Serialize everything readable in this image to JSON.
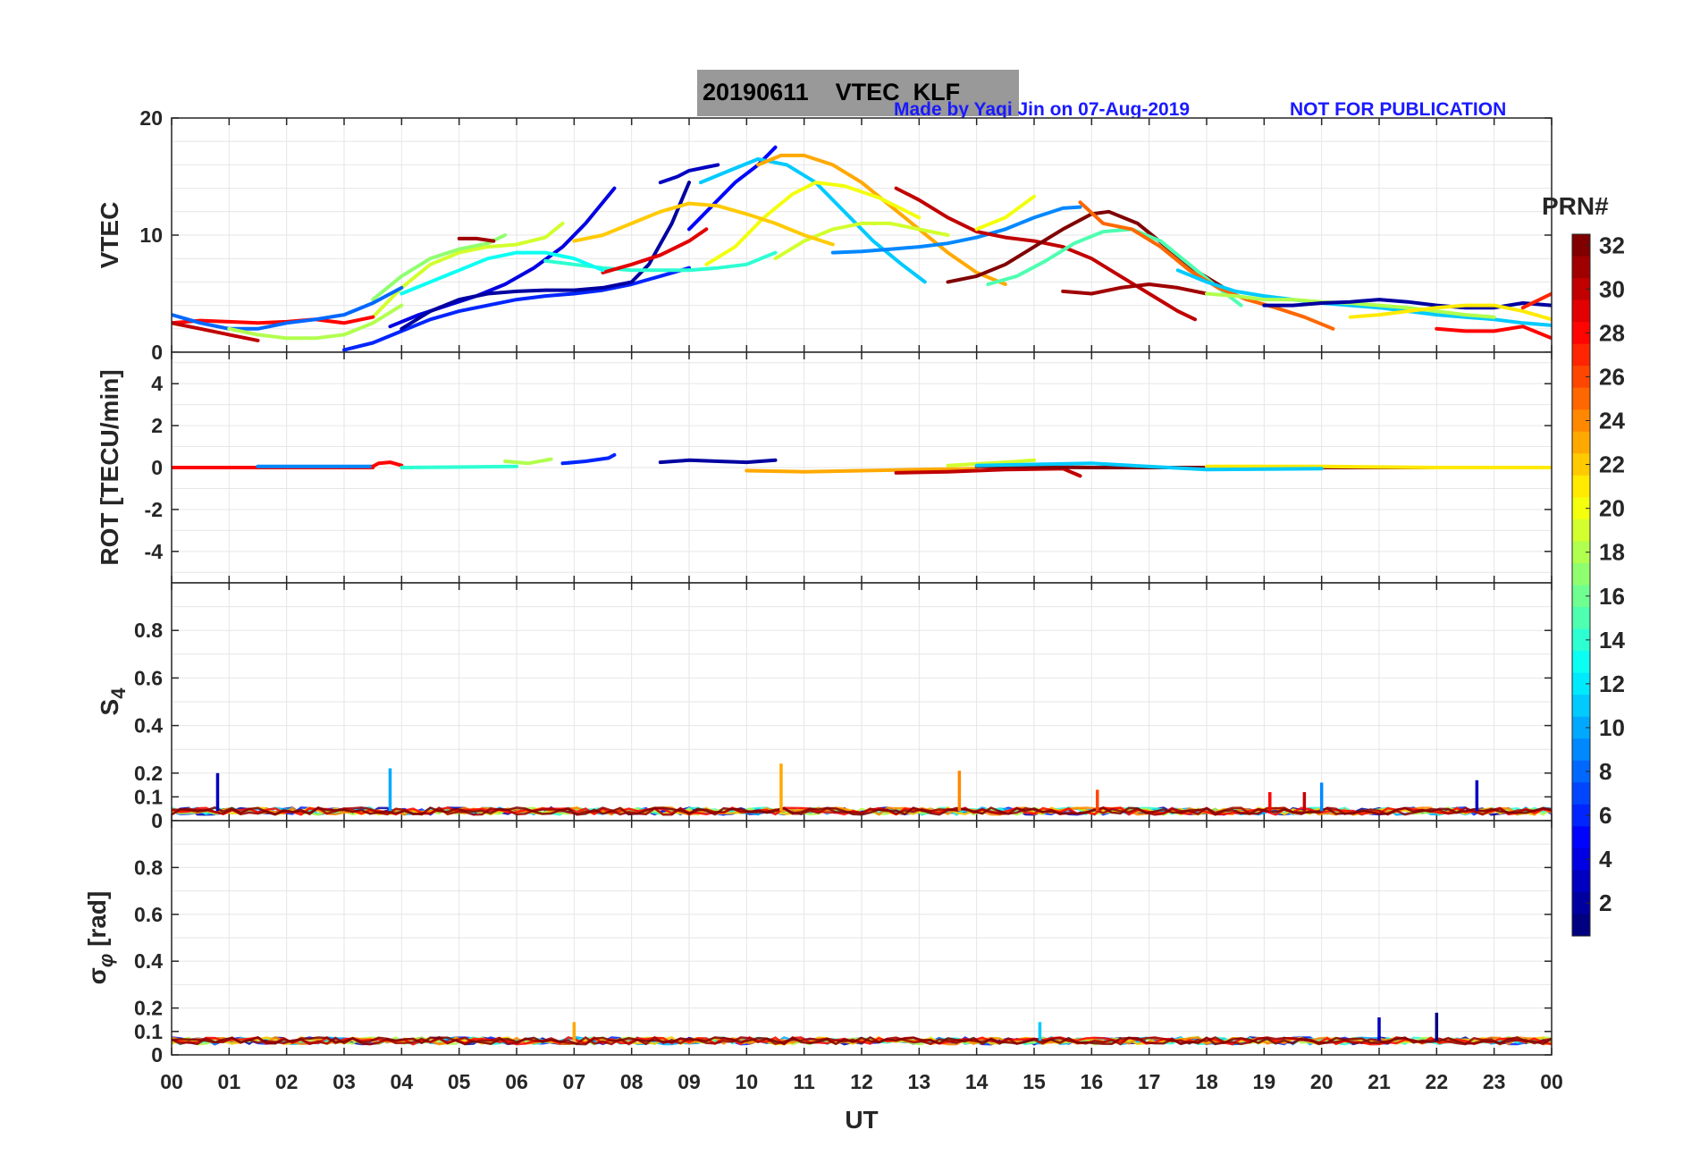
{
  "header": {
    "title": "20190611    VTEC  KLF",
    "credit": "Made by Yaqi Jin on 07-Aug-2019",
    "notice": "NOT FOR PUBLICATION"
  },
  "colorbar": {
    "label": "PRN#",
    "ticks": [
      "2",
      "4",
      "6",
      "8",
      "10",
      "12",
      "14",
      "16",
      "18",
      "20",
      "22",
      "24",
      "26",
      "28",
      "30",
      "32"
    ],
    "range": [
      1,
      32
    ]
  },
  "colors": {
    "grid": "#e6e6e6",
    "axis": "#262626",
    "credit": "#1a1aff",
    "title_bg": "#999999"
  },
  "chart_data": [
    {
      "type": "line",
      "id": "vtec",
      "ylabel": "VTEC",
      "ylim": [
        0,
        20
      ],
      "yticks": [
        "0",
        "10",
        "20"
      ],
      "xlim": [
        0,
        24
      ],
      "series": [
        {
          "prn": 6,
          "x": [
            3.0,
            3.5,
            4.0,
            4.5,
            5.0,
            5.5,
            6.0,
            6.5,
            7.0,
            7.5,
            8.0,
            8.5,
            9.0
          ],
          "y": [
            0.2,
            0.8,
            1.8,
            2.8,
            3.5,
            4.0,
            4.5,
            4.8,
            5.0,
            5.3,
            5.8,
            6.5,
            7.2
          ]
        },
        {
          "prn": 4,
          "x": [
            3.8,
            4.3,
            4.8,
            5.3,
            5.8,
            6.3,
            6.8,
            7.2,
            7.7
          ],
          "y": [
            2.2,
            3.2,
            4.0,
            4.8,
            5.8,
            7.2,
            9.0,
            11.0,
            14.0
          ]
        },
        {
          "prn": 2,
          "x": [
            4.0,
            4.5,
            5.0,
            5.5,
            6.0,
            6.5,
            7.0,
            7.5,
            8.0,
            8.3,
            8.7,
            9.0
          ],
          "y": [
            2.0,
            3.5,
            4.5,
            5.0,
            5.2,
            5.3,
            5.3,
            5.5,
            6.0,
            7.5,
            11.0,
            14.5
          ]
        },
        {
          "prn": 3,
          "x": [
            8.5,
            8.8,
            9.0,
            9.3,
            9.5
          ],
          "y": [
            14.5,
            15.0,
            15.5,
            15.8,
            16.0
          ]
        },
        {
          "prn": 5,
          "x": [
            9.0,
            9.4,
            9.8,
            10.2,
            10.5
          ],
          "y": [
            10.5,
            12.5,
            14.5,
            16.0,
            17.5
          ]
        },
        {
          "prn": 11,
          "x": [
            9.2,
            9.7,
            10.2,
            10.7,
            11.2,
            11.7,
            12.2,
            12.7,
            13.1
          ],
          "y": [
            14.5,
            15.5,
            16.5,
            16.0,
            14.5,
            12.0,
            9.5,
            7.5,
            6.0
          ]
        },
        {
          "prn": 23,
          "x": [
            10.2,
            10.6,
            11.0,
            11.5,
            12.0,
            12.5,
            13.0,
            13.5,
            14.0,
            14.5
          ],
          "y": [
            16.0,
            16.8,
            16.8,
            16.0,
            14.5,
            12.5,
            10.5,
            8.5,
            6.8,
            5.8
          ]
        },
        {
          "prn": 20,
          "x": [
            9.3,
            9.8,
            10.3,
            10.8,
            11.2,
            11.7,
            12.3,
            13.0
          ],
          "y": [
            7.5,
            9.0,
            11.5,
            13.5,
            14.5,
            14.2,
            13.2,
            11.5
          ]
        },
        {
          "prn": 19,
          "x": [
            10.5,
            11.0,
            11.5,
            12.0,
            12.5,
            13.0,
            13.5
          ],
          "y": [
            8.0,
            9.5,
            10.5,
            11.0,
            11.0,
            10.5,
            10.0
          ]
        },
        {
          "prn": 14,
          "x": [
            6.5,
            7.0,
            7.5,
            8.0,
            8.5,
            9.0,
            9.5,
            10.0,
            10.5
          ],
          "y": [
            7.8,
            7.5,
            7.2,
            7.0,
            7.0,
            7.0,
            7.2,
            7.5,
            8.5
          ]
        },
        {
          "prn": 22,
          "x": [
            7.0,
            7.5,
            8.0,
            8.5,
            9.0,
            9.5,
            10.0,
            10.5,
            11.0,
            11.5
          ],
          "y": [
            9.5,
            10.0,
            11.0,
            12.0,
            12.7,
            12.5,
            11.8,
            11.0,
            10.0,
            9.2
          ]
        },
        {
          "prn": 29,
          "x": [
            7.5,
            8.0,
            8.5,
            9.0,
            9.3
          ],
          "y": [
            6.8,
            7.5,
            8.3,
            9.5,
            10.5
          ]
        },
        {
          "prn": 17,
          "x": [
            3.5,
            4.0,
            4.5,
            5.0,
            5.5,
            5.8
          ],
          "y": [
            4.5,
            6.5,
            8.0,
            8.8,
            9.3,
            10.0
          ]
        },
        {
          "prn": 19,
          "x": [
            3.5,
            4.0,
            4.5,
            5.0,
            5.5,
            6.0,
            6.5,
            6.8
          ],
          "y": [
            3.0,
            5.5,
            7.5,
            8.5,
            9.0,
            9.2,
            9.8,
            11.0
          ]
        },
        {
          "prn": 13,
          "x": [
            4.0,
            4.5,
            5.0,
            5.5,
            6.0,
            6.5,
            7.0,
            7.5
          ],
          "y": [
            5.0,
            6.0,
            7.0,
            8.0,
            8.5,
            8.5,
            8.0,
            7.0
          ]
        },
        {
          "prn": 28,
          "x": [
            0.0,
            0.5,
            1.0,
            1.5,
            2.0,
            2.5,
            3.0,
            3.5
          ],
          "y": [
            2.5,
            2.7,
            2.6,
            2.5,
            2.6,
            2.8,
            2.5,
            3.0
          ]
        },
        {
          "prn": 8,
          "x": [
            0.0,
            0.5,
            1.0,
            1.5,
            2.0,
            2.5,
            3.0,
            3.5,
            4.0
          ],
          "y": [
            3.2,
            2.5,
            2.0,
            2.0,
            2.5,
            2.8,
            3.2,
            4.2,
            5.5
          ]
        },
        {
          "prn": 30,
          "x": [
            0.0,
            0.5,
            1.0,
            1.5
          ],
          "y": [
            2.5,
            2.0,
            1.5,
            1.0
          ]
        },
        {
          "prn": 18,
          "x": [
            1.0,
            1.5,
            2.0,
            2.5,
            3.0,
            3.5,
            4.0
          ],
          "y": [
            2.0,
            1.5,
            1.2,
            1.2,
            1.5,
            2.5,
            4.0
          ]
        },
        {
          "prn": 31,
          "x": [
            5.0,
            5.3,
            5.6
          ],
          "y": [
            9.7,
            9.7,
            9.5
          ]
        },
        {
          "prn": 9,
          "x": [
            11.5,
            12.0,
            12.5,
            13.0,
            13.5,
            14.0,
            14.5,
            15.0,
            15.5,
            15.8
          ],
          "y": [
            8.5,
            8.6,
            8.8,
            9.0,
            9.3,
            9.8,
            10.5,
            11.5,
            12.3,
            12.4
          ]
        },
        {
          "prn": 30,
          "x": [
            12.6,
            13.0,
            13.5,
            14.0,
            14.5,
            15.0,
            15.5,
            16.0,
            16.5,
            17.0,
            17.5,
            17.8
          ],
          "y": [
            14.0,
            13.0,
            11.5,
            10.3,
            9.8,
            9.5,
            9.0,
            8.0,
            6.5,
            5.0,
            3.5,
            2.8
          ]
        },
        {
          "prn": 32,
          "x": [
            13.5,
            14.0,
            14.5,
            15.0,
            15.5,
            16.0,
            16.3,
            16.8,
            17.3,
            17.8,
            18.3
          ],
          "y": [
            6.0,
            6.5,
            7.5,
            9.0,
            10.5,
            11.8,
            12.0,
            11.0,
            9.0,
            7.0,
            5.5
          ]
        },
        {
          "prn": 20,
          "x": [
            14.0,
            14.5,
            15.0
          ],
          "y": [
            10.5,
            11.5,
            13.3
          ]
        },
        {
          "prn": 15,
          "x": [
            14.2,
            14.7,
            15.2,
            15.7,
            16.2,
            16.7,
            17.2,
            17.7,
            18.2,
            18.6
          ],
          "y": [
            5.8,
            6.5,
            7.8,
            9.3,
            10.3,
            10.5,
            9.5,
            7.5,
            5.5,
            4.0
          ]
        },
        {
          "prn": 25,
          "x": [
            15.8,
            16.2,
            16.7,
            17.2,
            17.7,
            18.2,
            18.7,
            19.2,
            19.7,
            20.2
          ],
          "y": [
            12.8,
            11.0,
            10.5,
            9.0,
            7.0,
            5.5,
            4.5,
            3.8,
            3.0,
            2.0
          ]
        },
        {
          "prn": 31,
          "x": [
            15.5,
            16.0,
            16.5,
            17.0,
            17.5,
            18.0
          ],
          "y": [
            5.2,
            5.0,
            5.5,
            5.8,
            5.5,
            5.0
          ]
        },
        {
          "prn": 11,
          "x": [
            17.5,
            18.0,
            18.5,
            19.0,
            19.5,
            20.0,
            20.5,
            21.0,
            21.5,
            22.0,
            22.5,
            23.0,
            23.5,
            24.0
          ],
          "y": [
            7.0,
            6.0,
            5.2,
            4.8,
            4.5,
            4.2,
            4.0,
            3.8,
            3.5,
            3.2,
            3.0,
            2.8,
            2.5,
            2.3
          ]
        },
        {
          "prn": 18,
          "x": [
            18.0,
            18.5,
            19.0,
            19.5,
            20.0,
            20.5,
            21.0,
            21.5,
            22.0,
            22.5,
            23.0
          ],
          "y": [
            5.0,
            4.8,
            4.5,
            4.5,
            4.3,
            4.2,
            4.0,
            3.8,
            3.5,
            3.2,
            3.0
          ]
        },
        {
          "prn": 2,
          "x": [
            19.0,
            19.5,
            20.0,
            20.5,
            21.0,
            21.5,
            22.0,
            22.5,
            23.0,
            23.5,
            24.0
          ],
          "y": [
            4.0,
            4.0,
            4.2,
            4.3,
            4.5,
            4.3,
            4.0,
            3.8,
            3.8,
            4.2,
            4.0
          ]
        },
        {
          "prn": 21,
          "x": [
            20.5,
            21.0,
            21.5,
            22.0,
            22.5,
            23.0,
            23.5,
            24.0
          ],
          "y": [
            3.0,
            3.2,
            3.5,
            3.8,
            4.0,
            4.0,
            3.5,
            2.8
          ]
        },
        {
          "prn": 28,
          "x": [
            22.0,
            22.5,
            23.0,
            23.5,
            24.0
          ],
          "y": [
            2.0,
            1.8,
            1.8,
            2.2,
            1.2
          ]
        },
        {
          "prn": 27,
          "x": [
            23.5,
            24.0
          ],
          "y": [
            3.8,
            5.0
          ]
        }
      ]
    },
    {
      "type": "line",
      "id": "rot",
      "ylabel": "ROT [TECU/min]",
      "ylim": [
        -5.5,
        5.5
      ],
      "yticks": [
        "-4",
        "-2",
        "0",
        "2",
        "4"
      ],
      "xlim": [
        0,
        24
      ],
      "series": [
        {
          "prn": 28,
          "x": [
            0,
            3.5
          ],
          "y": [
            0,
            0
          ]
        },
        {
          "prn": 9,
          "x": [
            1.5,
            3.5
          ],
          "y": [
            0.05,
            0.05
          ]
        },
        {
          "prn": 28,
          "x": [
            3.5,
            3.6,
            3.8,
            4.0
          ],
          "y": [
            0.05,
            0.2,
            0.25,
            0.1
          ]
        },
        {
          "prn": 14,
          "x": [
            4.0,
            6.0
          ],
          "y": [
            0,
            0.05
          ]
        },
        {
          "prn": 18,
          "x": [
            5.8,
            6.2,
            6.6
          ],
          "y": [
            0.3,
            0.2,
            0.4
          ]
        },
        {
          "prn": 6,
          "x": [
            6.8,
            7.2,
            7.6,
            7.7
          ],
          "y": [
            0.2,
            0.3,
            0.45,
            0.6
          ]
        },
        {
          "prn": 2,
          "x": [
            8.5,
            9.0,
            9.5,
            10.0,
            10.5
          ],
          "y": [
            0.25,
            0.35,
            0.3,
            0.25,
            0.35
          ]
        },
        {
          "prn": 23,
          "x": [
            10.0,
            11.0,
            12.0,
            13.0,
            14.0
          ],
          "y": [
            -0.15,
            -0.2,
            -0.15,
            -0.1,
            -0.05
          ]
        },
        {
          "prn": 30,
          "x": [
            12.6,
            13.5,
            14.5,
            15.5,
            15.8
          ],
          "y": [
            -0.25,
            -0.2,
            -0.1,
            -0.05,
            -0.4
          ]
        },
        {
          "prn": 19,
          "x": [
            13.5,
            14.5,
            15.0
          ],
          "y": [
            0.1,
            0.25,
            0.35
          ]
        },
        {
          "prn": 32,
          "x": [
            14.0,
            16.0,
            18.0,
            20.0,
            22.0,
            24.0
          ],
          "y": [
            0.05,
            0,
            0,
            0,
            0,
            0
          ]
        },
        {
          "prn": 21,
          "x": [
            18.0,
            20.0,
            22.0,
            24.0
          ],
          "y": [
            0.05,
            0.05,
            0,
            0
          ]
        },
        {
          "prn": 11,
          "x": [
            14.0,
            16.0,
            18.0,
            20.0
          ],
          "y": [
            0.1,
            0.2,
            -0.1,
            -0.05
          ]
        }
      ]
    },
    {
      "type": "line",
      "id": "s4",
      "ylabel": "S4",
      "ylim": [
        0,
        1
      ],
      "yticks": [
        "0",
        "0.1",
        "0.2",
        "0.4",
        "0.6",
        "0.8"
      ],
      "xlim": [
        0,
        24
      ],
      "baseline": 0.04,
      "spikes": [
        {
          "prn": 3,
          "x": 0.8,
          "y": 0.2
        },
        {
          "prn": 10,
          "x": 3.8,
          "y": 0.22
        },
        {
          "prn": 23,
          "x": 10.6,
          "y": 0.24
        },
        {
          "prn": 24,
          "x": 13.7,
          "y": 0.21
        },
        {
          "prn": 26,
          "x": 16.1,
          "y": 0.13
        },
        {
          "prn": 28,
          "x": 19.1,
          "y": 0.12
        },
        {
          "prn": 30,
          "x": 19.7,
          "y": 0.12
        },
        {
          "prn": 9,
          "x": 20.0,
          "y": 0.16
        },
        {
          "prn": 3,
          "x": 22.7,
          "y": 0.17
        }
      ]
    },
    {
      "type": "line",
      "id": "sigma",
      "ylabel": "σφ [rad]",
      "ylim": [
        0,
        1
      ],
      "yticks": [
        "0",
        "0.1",
        "0.2",
        "0.4",
        "0.6",
        "0.8"
      ],
      "xlim": [
        0,
        24
      ],
      "baseline": 0.06,
      "spikes": [
        {
          "prn": 23,
          "x": 7.0,
          "y": 0.14
        },
        {
          "prn": 11,
          "x": 15.1,
          "y": 0.14
        },
        {
          "prn": 3,
          "x": 21.0,
          "y": 0.16
        },
        {
          "prn": 1,
          "x": 22.0,
          "y": 0.18
        }
      ]
    }
  ],
  "xaxis": {
    "label": "UT",
    "ticks": [
      "00",
      "01",
      "02",
      "03",
      "04",
      "05",
      "06",
      "07",
      "08",
      "09",
      "10",
      "11",
      "12",
      "13",
      "14",
      "15",
      "16",
      "17",
      "18",
      "19",
      "20",
      "21",
      "22",
      "23",
      "00"
    ]
  }
}
